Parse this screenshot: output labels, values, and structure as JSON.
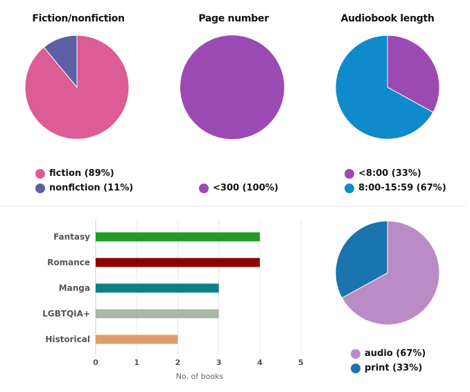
{
  "colors": {
    "fiction": "#dc5c95",
    "nonfiction": "#5b5fa4",
    "purple": "#9b4ab3",
    "blue": "#0f8bcc",
    "audio": "#b98cc7",
    "print": "#1a74ad"
  },
  "pies": [
    {
      "title": "Fiction/nonfiction",
      "slices": [
        {
          "label": "fiction (89%)",
          "value": 89,
          "color": "#dc5c95"
        },
        {
          "label": "nonfiction (11%)",
          "value": 11,
          "color": "#5b5fa4"
        }
      ]
    },
    {
      "title": "Page number",
      "slices": [
        {
          "label": "<300 (100%)",
          "value": 100,
          "color": "#9b4ab3"
        }
      ]
    },
    {
      "title": "Audiobook length",
      "slices": [
        {
          "label": "<8:00 (33%)",
          "value": 33,
          "color": "#9b4ab3"
        },
        {
          "label": "8:00-15:59 (67%)",
          "value": 67,
          "color": "#0f8bcc"
        }
      ]
    },
    {
      "title": "",
      "slices": [
        {
          "label": "audio (67%)",
          "value": 67,
          "color": "#b98cc7"
        },
        {
          "label": "print (33%)",
          "value": 33,
          "color": "#1a74ad"
        }
      ]
    }
  ],
  "chart_data": [
    {
      "type": "pie",
      "title": "Fiction/nonfiction",
      "labels": [
        "fiction (89%)",
        "nonfiction (11%)"
      ],
      "values": [
        89,
        11
      ]
    },
    {
      "type": "pie",
      "title": "Page number",
      "labels": [
        "<300 (100%)"
      ],
      "values": [
        100
      ]
    },
    {
      "type": "pie",
      "title": "Audiobook length",
      "labels": [
        "<8:00 (33%)",
        "8:00-15:59 (67%)"
      ],
      "values": [
        33,
        67
      ]
    },
    {
      "type": "bar",
      "orientation": "horizontal",
      "categories": [
        "Fantasy",
        "Romance",
        "Manga",
        "LGBTQIA+",
        "Historical"
      ],
      "values": [
        4,
        4,
        3,
        3,
        2
      ],
      "colors": [
        "#1f9a26",
        "#8b0000",
        "#0f7f86",
        "#a9b9a6",
        "#df9c6f"
      ],
      "xlabel": "No. of books",
      "xlim": [
        0,
        5
      ],
      "xticks": [
        "0",
        "1",
        "2",
        "3",
        "4",
        "5"
      ],
      "grid": true
    },
    {
      "type": "pie",
      "title": "",
      "labels": [
        "audio (67%)",
        "print (33%)"
      ],
      "values": [
        67,
        33
      ]
    }
  ]
}
